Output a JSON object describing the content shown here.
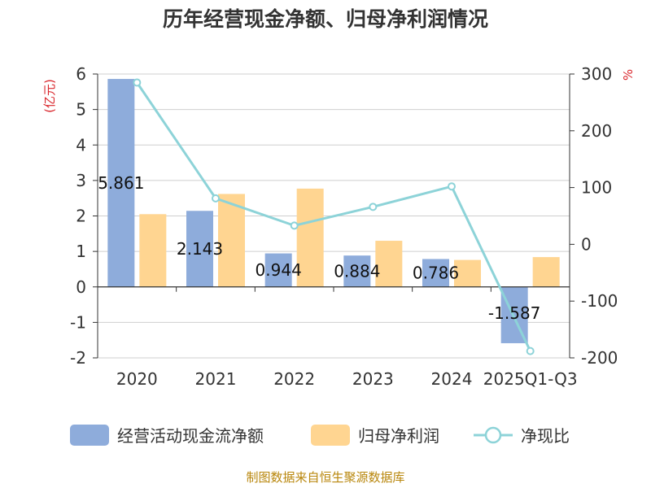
{
  "chart_data": {
    "type": "bar",
    "title": "历年经营现金净额、归母净利润情况",
    "categories": [
      "2020",
      "2021",
      "2022",
      "2023",
      "2024",
      "2025Q1-Q3"
    ],
    "series": [
      {
        "name": "经营活动现金流净额",
        "type": "bar",
        "axis": "left",
        "color": "#8eacdb",
        "values": [
          5.861,
          2.143,
          0.944,
          0.884,
          0.786,
          -1.587
        ],
        "labels": [
          "5.861",
          "2.143",
          "0.944",
          "0.884",
          "0.786",
          "-1.587"
        ]
      },
      {
        "name": "归母净利润",
        "type": "bar",
        "axis": "left",
        "color": "#ffd591",
        "values": [
          2.05,
          2.62,
          2.77,
          1.3,
          0.76,
          0.84
        ]
      },
      {
        "name": "净现比",
        "type": "line",
        "axis": "right",
        "color": "#8dd3d8",
        "values": [
          285,
          81,
          33,
          66,
          102,
          -188
        ]
      }
    ],
    "left_axis": {
      "unit": "(亿元)",
      "min": -2,
      "max": 6,
      "ticks": [
        "6",
        "5",
        "4",
        "3",
        "2",
        "1",
        "0",
        "-1",
        "-2"
      ]
    },
    "right_axis": {
      "unit": "%",
      "min": -200,
      "max": 300,
      "ticks": [
        "300",
        "200",
        "100",
        "0",
        "-100",
        "-200"
      ]
    },
    "grid": true,
    "legend_position": "bottom"
  },
  "footer": {
    "source": "制图数据来自恒生聚源数据库"
  }
}
